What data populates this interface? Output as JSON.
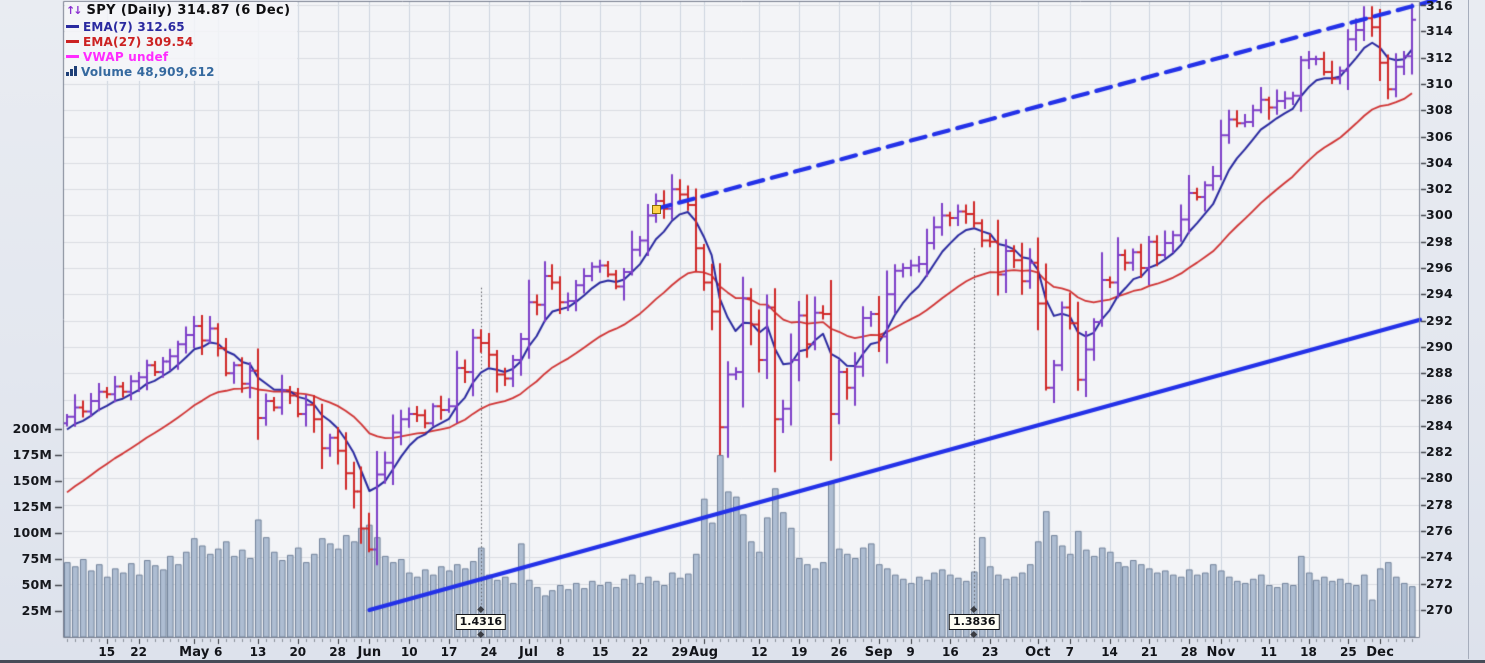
{
  "legend": {
    "title": "SPY (Daily) 314.87 (6 Dec)",
    "items": [
      {
        "id": "ema7",
        "label": "EMA(7) 312.65",
        "color": "#2a2aa0"
      },
      {
        "id": "ema27",
        "label": "EMA(27) 309.54",
        "color": "#cc2222"
      },
      {
        "id": "vwap",
        "label": "VWAP undef",
        "color": "#ff2bff"
      },
      {
        "id": "volume",
        "label": "Volume 48,909,612",
        "color": "#35699f"
      }
    ]
  },
  "chart_data": {
    "type": "ohlc",
    "symbol": "SPY",
    "interval": "Daily",
    "last_price": 314.87,
    "last_date": "6 Dec",
    "price_axis": {
      "side": "right",
      "min": 270,
      "max": 316,
      "step": 2
    },
    "volume_axis": {
      "side": "left",
      "unit": "M",
      "ticks": [
        {
          "label": "200M",
          "value": 200
        },
        {
          "label": "175M",
          "value": 175
        },
        {
          "label": "150M",
          "value": 150
        },
        {
          "label": "125M",
          "value": 125
        },
        {
          "label": "100M",
          "value": 100
        },
        {
          "label": "75M",
          "value": 75
        },
        {
          "label": "50M",
          "value": 50
        },
        {
          "label": "25M",
          "value": 25
        }
      ]
    },
    "x_axis": {
      "labels": [
        {
          "i": 5,
          "text": "15"
        },
        {
          "i": 9,
          "text": "22"
        },
        {
          "i": 16,
          "text": "May",
          "bold": true
        },
        {
          "i": 19,
          "text": "6"
        },
        {
          "i": 24,
          "text": "13"
        },
        {
          "i": 29,
          "text": "20"
        },
        {
          "i": 34,
          "text": "28"
        },
        {
          "i": 38,
          "text": "Jun",
          "bold": true
        },
        {
          "i": 43,
          "text": "10"
        },
        {
          "i": 48,
          "text": "17"
        },
        {
          "i": 53,
          "text": "24"
        },
        {
          "i": 58,
          "text": "Jul",
          "bold": true
        },
        {
          "i": 62,
          "text": "8"
        },
        {
          "i": 67,
          "text": "15"
        },
        {
          "i": 72,
          "text": "22"
        },
        {
          "i": 77,
          "text": "29"
        },
        {
          "i": 80,
          "text": "Aug",
          "bold": true
        },
        {
          "i": 87,
          "text": "12"
        },
        {
          "i": 92,
          "text": "19"
        },
        {
          "i": 97,
          "text": "26"
        },
        {
          "i": 102,
          "text": "Sep",
          "bold": true
        },
        {
          "i": 106,
          "text": "9"
        },
        {
          "i": 111,
          "text": "16"
        },
        {
          "i": 116,
          "text": "23"
        },
        {
          "i": 122,
          "text": "Oct",
          "bold": true
        },
        {
          "i": 126,
          "text": "7"
        },
        {
          "i": 131,
          "text": "14"
        },
        {
          "i": 136,
          "text": "21"
        },
        {
          "i": 141,
          "text": "28"
        },
        {
          "i": 145,
          "text": "Nov",
          "bold": true
        },
        {
          "i": 151,
          "text": "11"
        },
        {
          "i": 156,
          "text": "18"
        },
        {
          "i": 161,
          "text": "25"
        },
        {
          "i": 165,
          "text": "Dec",
          "bold": true
        }
      ]
    },
    "indicators": [
      {
        "name": "EMA",
        "period": 7,
        "last_value": 312.65,
        "seed": 283.4
      },
      {
        "name": "EMA",
        "period": 27,
        "last_value": 309.54,
        "seed": 278.5
      },
      {
        "name": "VWAP",
        "last_value": "undef"
      },
      {
        "name": "Volume",
        "last_value": "48,909,612"
      }
    ],
    "bars": {
      "first_open": 284.2,
      "closes": [
        284.7,
        285.4,
        285.1,
        285.9,
        286.6,
        286.4,
        287.0,
        286.6,
        287.4,
        287.7,
        288.6,
        288.1,
        288.9,
        289.3,
        290.2,
        290.9,
        291.6,
        290.5,
        291.4,
        289.9,
        288.0,
        288.6,
        287.2,
        288.2,
        284.6,
        285.9,
        285.4,
        286.7,
        286.3,
        284.9,
        285.6,
        284.5,
        282.3,
        283.1,
        282.1,
        280.4,
        279.0,
        276.2,
        274.6,
        280.3,
        281.2,
        283.5,
        284.5,
        284.9,
        284.8,
        284.2,
        285.5,
        285.2,
        285.5,
        288.4,
        288.1,
        290.7,
        290.3,
        289.4,
        287.9,
        287.6,
        289.0,
        290.6,
        293.4,
        293.2,
        295.4,
        294.9,
        293.4,
        293.5,
        294.7,
        295.4,
        296.1,
        296.2,
        295.5,
        294.6,
        295.7,
        297.4,
        298.1,
        300.0,
        301.1,
        300.5,
        302.0,
        301.6,
        300.8,
        297.5,
        294.9,
        292.7,
        283.9,
        287.9,
        288.1,
        293.7,
        291.7,
        289.0,
        293.0,
        284.5,
        285.3,
        289.0,
        292.4,
        290.2,
        292.6,
        292.5,
        284.9,
        288.1,
        286.9,
        288.5,
        292.2,
        292.5,
        290.8,
        294.0,
        295.8,
        296.0,
        296.2,
        296.3,
        297.9,
        299.1,
        300.0,
        299.8,
        300.3,
        300.1,
        299.4,
        298.1,
        298.0,
        295.5,
        297.3,
        296.6,
        295.0,
        296.4,
        293.3,
        286.9,
        288.6,
        293.0,
        291.8,
        287.5,
        289.8,
        291.9,
        295.1,
        294.9,
        297.0,
        296.4,
        297.2,
        296.0,
        298.0,
        297.0,
        297.9,
        298.5,
        299.7,
        301.7,
        301.4,
        302.3,
        303.0,
        306.1,
        307.3,
        307.0,
        307.1,
        308.0,
        308.8,
        308.2,
        308.7,
        308.9,
        309.1,
        311.8,
        311.9,
        311.9,
        310.9,
        310.4,
        311.0,
        313.4,
        314.1,
        315.0,
        314.3,
        311.6,
        309.6,
        311.3,
        312.1,
        314.87
      ],
      "volumes_millions": [
        72,
        68,
        75,
        64,
        70,
        58,
        66,
        62,
        71,
        60,
        74,
        69,
        65,
        78,
        70,
        82,
        95,
        88,
        80,
        85,
        92,
        78,
        84,
        76,
        113,
        96,
        82,
        74,
        79,
        86,
        72,
        80,
        95,
        90,
        85,
        98,
        92,
        105,
        108,
        96,
        78,
        72,
        75,
        62,
        58,
        65,
        60,
        68,
        64,
        70,
        66,
        73,
        86,
        60,
        55,
        58,
        52,
        90,
        55,
        48,
        40,
        45,
        50,
        46,
        52,
        47,
        54,
        50,
        53,
        48,
        56,
        60,
        52,
        58,
        54,
        50,
        62,
        57,
        61,
        80,
        133,
        110,
        175,
        140,
        135,
        118,
        92,
        82,
        115,
        143,
        120,
        105,
        76,
        70,
        66,
        72,
        148,
        85,
        80,
        76,
        86,
        90,
        70,
        66,
        60,
        56,
        52,
        58,
        55,
        62,
        65,
        60,
        57,
        54,
        63,
        96,
        68,
        60,
        56,
        58,
        62,
        70,
        92,
        121,
        98,
        88,
        80,
        102,
        84,
        78,
        86,
        82,
        72,
        68,
        74,
        70,
        66,
        62,
        64,
        60,
        58,
        65,
        60,
        62,
        70,
        64,
        58,
        54,
        52,
        56,
        60,
        50,
        48,
        52,
        50,
        78,
        62,
        55,
        58,
        54,
        56,
        52,
        50,
        60,
        36,
        66,
        72,
        58,
        52,
        48.9
      ]
    },
    "trendlines": [
      {
        "style": "solid",
        "i1": 38,
        "price1": 270.0,
        "i2": 169,
        "price2": 291.9
      },
      {
        "style": "dashed",
        "i1": 74,
        "price1": 300.5,
        "i2": 169,
        "price2": 315.9,
        "handle": {
          "i": 74,
          "price": 300.5,
          "color": "#ffd24a"
        }
      }
    ],
    "markers": [
      {
        "i": 52,
        "label": "1.4316",
        "top_price": 294.5
      },
      {
        "i": 114,
        "label": "1.3836",
        "top_price": 297.5
      }
    ],
    "colors": {
      "up_bar": "#7e3fc8",
      "down_bar": "#d02828",
      "ema7": "#2a2aa0",
      "ema27": "#d03434",
      "vwap": "#ff2bff",
      "volume_fill": "#aebdd2",
      "volume_stroke": "#72839b",
      "trendline": "#2331e8",
      "grid_h": "#dadce2",
      "grid_v": "#cdd4e0",
      "plot_bg": "#f3f4f7",
      "marker_line": "#5a5c62",
      "axis_tick": "#3a3d44"
    }
  }
}
